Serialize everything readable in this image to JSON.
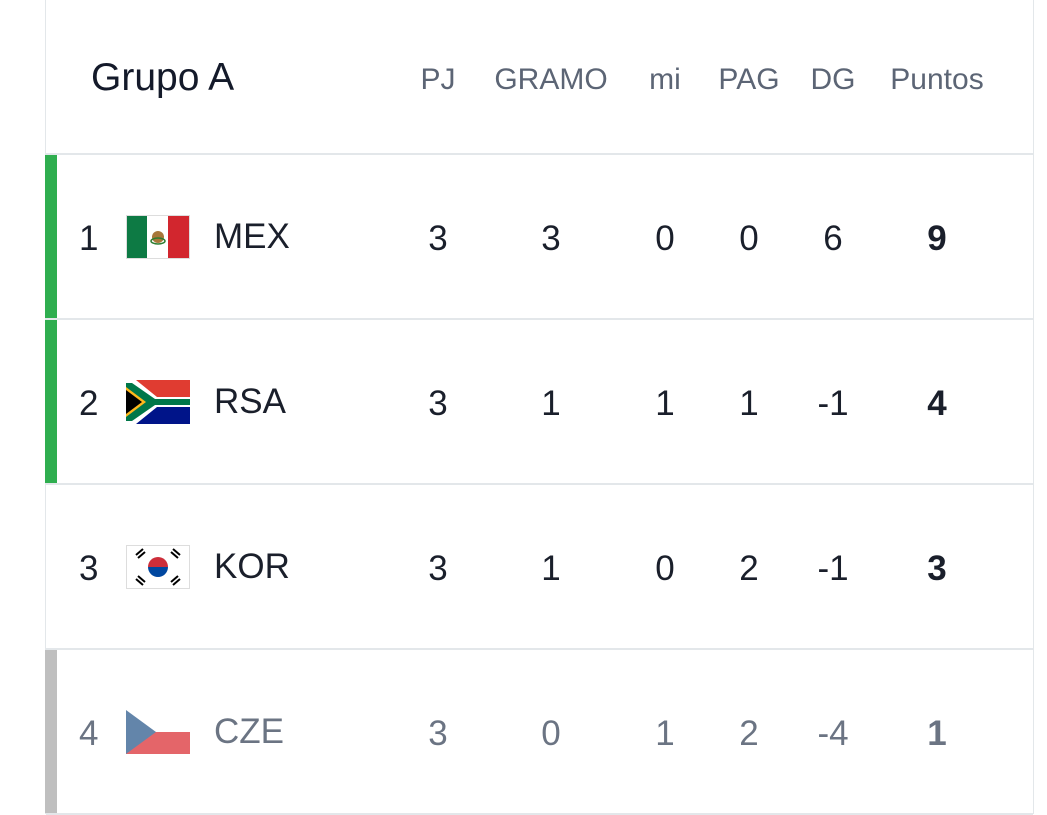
{
  "header": {
    "title": "Grupo A",
    "columns": [
      "PJ",
      "GRAMO",
      "mi",
      "PAG",
      "DG",
      "Puntos"
    ]
  },
  "table": {
    "rows": [
      {
        "rank": 1,
        "team": "MEX",
        "stats": [
          3,
          3,
          0,
          0,
          6,
          9
        ]
      },
      {
        "rank": 2,
        "team": "RSA",
        "stats": [
          3,
          1,
          1,
          1,
          -1,
          4
        ]
      },
      {
        "rank": 3,
        "team": "KOR",
        "stats": [
          3,
          1,
          0,
          2,
          -1,
          3
        ]
      },
      {
        "rank": 4,
        "team": "CZE",
        "stats": [
          3,
          0,
          1,
          2,
          -4,
          1
        ]
      }
    ]
  }
}
